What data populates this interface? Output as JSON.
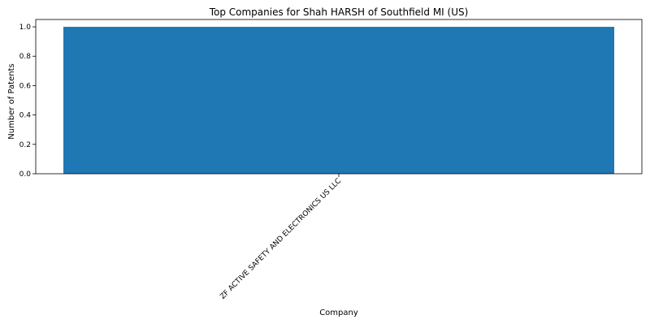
{
  "chart_data": {
    "type": "bar",
    "title": "Top Companies for Shah HARSH of Southfield MI (US)",
    "xlabel": "Company",
    "ylabel": "Number of Patents",
    "categories": [
      "ZF ACTIVE SAFETY AND ELECTRONICS US LLC"
    ],
    "values": [
      1
    ],
    "ylim": [
      0,
      1.05
    ],
    "yticks": [
      0.0,
      0.2,
      0.4,
      0.6,
      0.8,
      1.0
    ],
    "ytick_labels": [
      "0.0",
      "0.2",
      "0.4",
      "0.6",
      "0.8",
      "1.0"
    ],
    "bar_color": "#1f77b4",
    "grid": false,
    "legend": "none"
  }
}
